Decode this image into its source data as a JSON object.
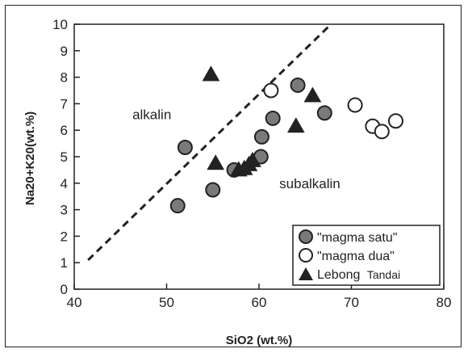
{
  "chart_data": {
    "type": "scatter",
    "xlabel": "SiO2 (wt.%)",
    "ylabel": "Na20+K20(wt.%)",
    "xlim": [
      40,
      80
    ],
    "ylim": [
      0,
      10
    ],
    "xticks": [
      "40",
      "50",
      "60",
      "70",
      "80"
    ],
    "yticks": [
      "0",
      "1",
      "2",
      "3",
      "4",
      "5",
      "6",
      "7",
      "8",
      "9",
      "10"
    ],
    "grid": false,
    "legend_position": "bottom-right",
    "divider": {
      "style": "dashed",
      "from": [
        41.5,
        1.1
      ],
      "to": [
        67.5,
        9.9
      ]
    },
    "annotations": [
      {
        "text": "alkalin",
        "x": 48.4,
        "y": 6.6
      },
      {
        "text": "subalkalin",
        "x": 65.5,
        "y": 4.0
      }
    ],
    "series": [
      {
        "name": "\"magma satu\"",
        "marker": "circle-filled",
        "color": "#7a7a7a",
        "points": [
          [
            51.2,
            3.15
          ],
          [
            52.0,
            5.35
          ],
          [
            55.0,
            3.75
          ],
          [
            57.3,
            4.5
          ],
          [
            60.2,
            5.0
          ],
          [
            60.3,
            5.75
          ],
          [
            61.5,
            6.45
          ],
          [
            64.2,
            7.7
          ],
          [
            67.1,
            6.65
          ]
        ]
      },
      {
        "name": "\"magma dua\"",
        "marker": "circle-open",
        "color": "#ffffff",
        "points": [
          [
            61.3,
            7.5
          ],
          [
            70.4,
            6.95
          ],
          [
            72.3,
            6.15
          ],
          [
            73.3,
            5.95
          ],
          [
            74.8,
            6.35
          ]
        ]
      },
      {
        "name": "Lebong",
        "name_suffix": "Tandai",
        "marker": "triangle",
        "color": "#222222",
        "points": [
          [
            54.8,
            8.1
          ],
          [
            55.3,
            4.75
          ],
          [
            57.8,
            4.5
          ],
          [
            58.4,
            4.55
          ],
          [
            58.9,
            4.7
          ],
          [
            59.3,
            4.85
          ],
          [
            64.0,
            6.15
          ],
          [
            65.8,
            7.3
          ]
        ]
      }
    ]
  }
}
